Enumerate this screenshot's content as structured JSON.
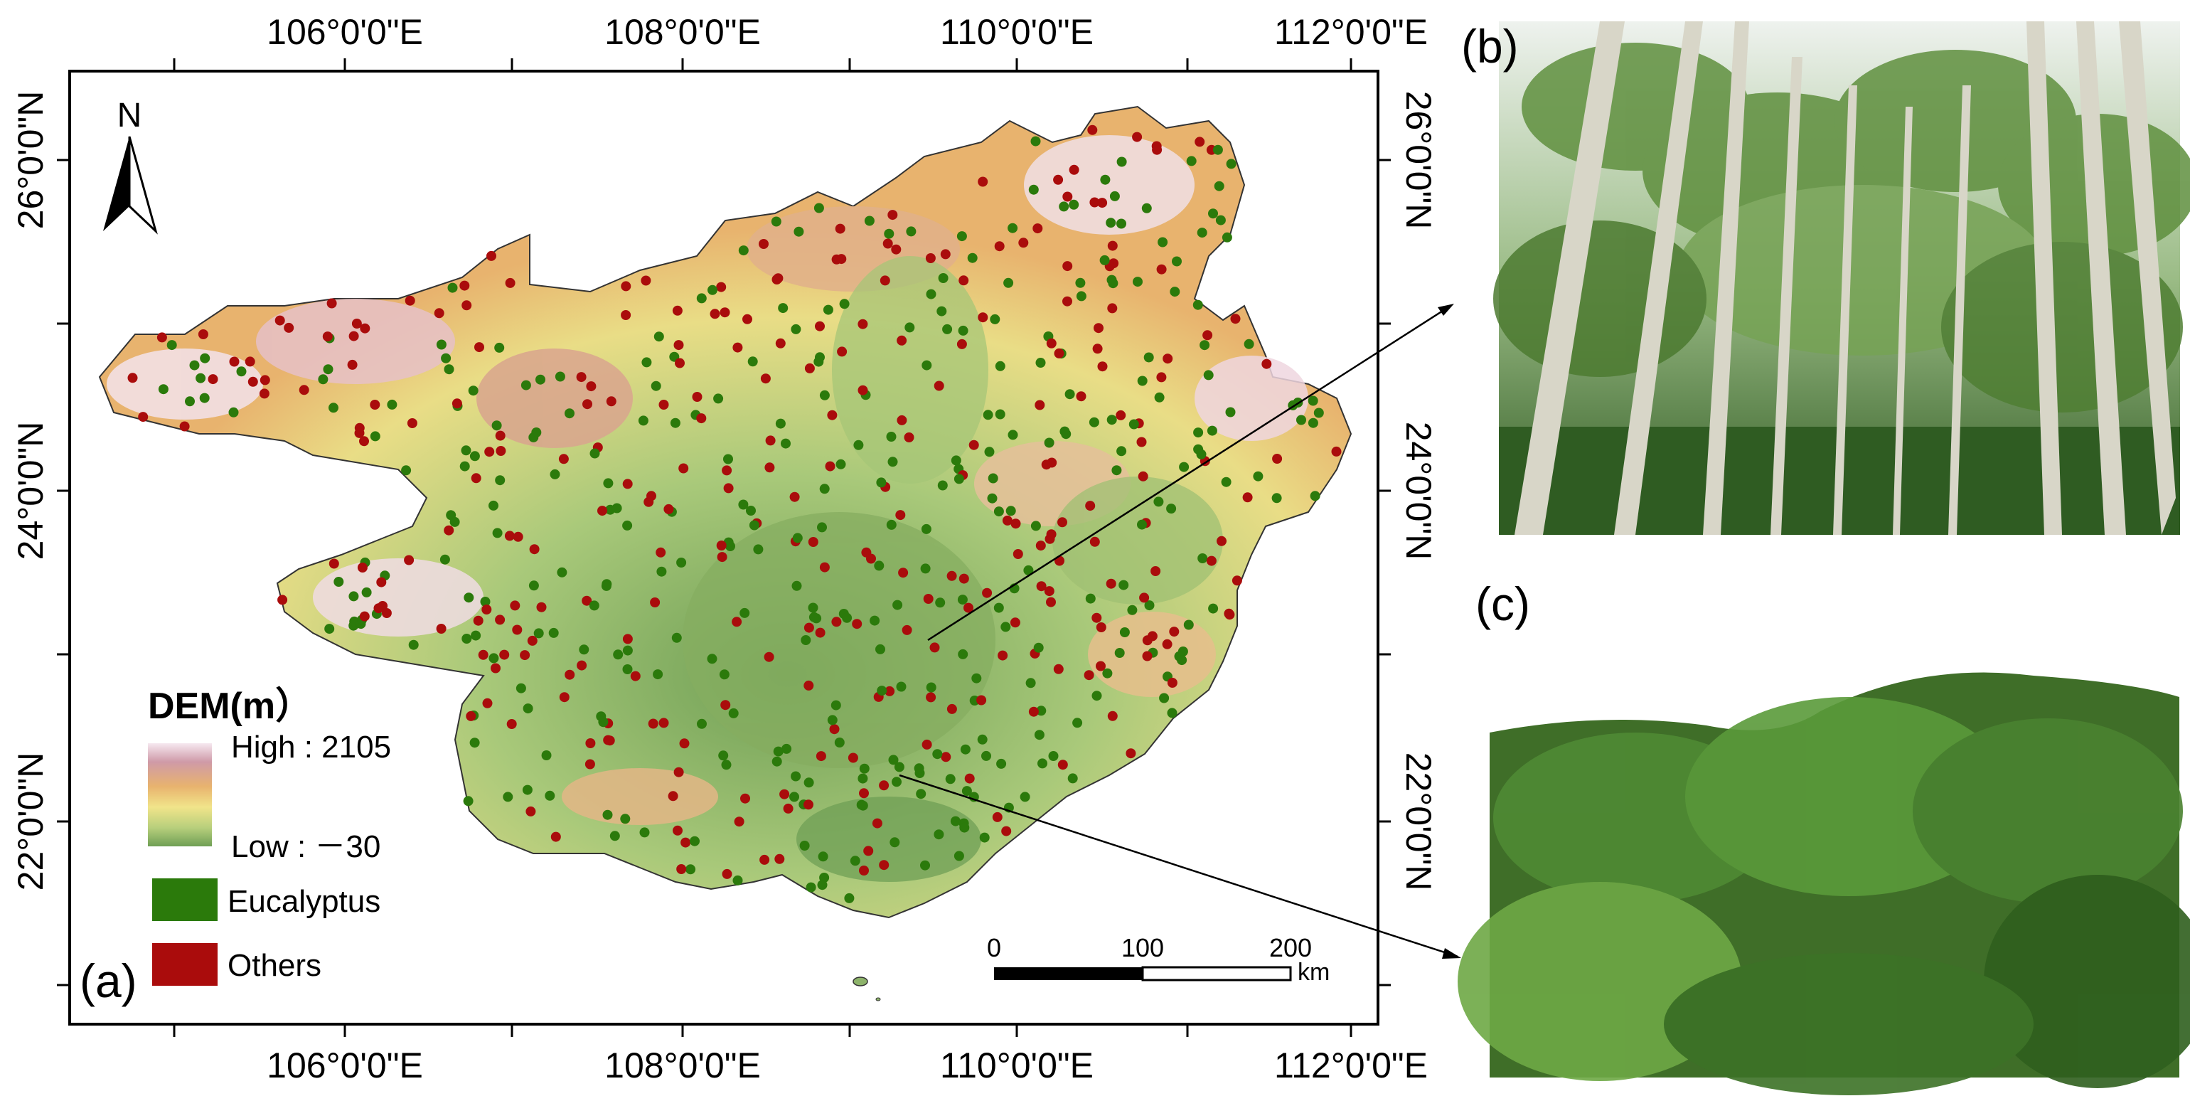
{
  "figure": {
    "panel_labels": {
      "a": "(a)",
      "b": "(b)",
      "c": "(c)"
    }
  },
  "map": {
    "top_ticks": [
      "106°0'0\"E",
      "108°0'0\"E",
      "110°0'0\"E",
      "112°0'0\"E"
    ],
    "bottom_ticks": [
      "106°0'0\"E",
      "108°0'0\"E",
      "110°0'0\"E",
      "112°0'0\"E"
    ],
    "left_ticks": [
      "26°0'0\"N",
      "24°0'0\"N",
      "22°0'0\"N"
    ],
    "right_ticks": [
      "26°0'0\"N",
      "24°0'0\"N",
      "22°0'0\"N"
    ],
    "north_arrow": {
      "label": "N",
      "icon": "north-arrow-icon"
    },
    "legend": {
      "title": "DEM(m）",
      "high_label": "High : 2105",
      "low_label": "Low : －30",
      "dem_high": 2105,
      "dem_low": -30,
      "items": [
        {
          "label": "Eucalyptus",
          "color": "#2b7a0b"
        },
        {
          "label": "Others",
          "color": "#aa0c0c"
        }
      ]
    },
    "scale_bar": {
      "ticks": [
        "0",
        "100",
        "200"
      ],
      "unit": "km"
    },
    "colors": {
      "dem_ramp": [
        "#f6e8f0",
        "#cf9aa8",
        "#e8b36e",
        "#f1e48a",
        "#b7cf7c",
        "#6f9f55"
      ],
      "eucalyptus_point": "#2b7a0b",
      "others_point": "#aa0c0c"
    }
  },
  "photos": {
    "b": {
      "subject": "eucalyptus trunks forest photo"
    },
    "c": {
      "subject": "eucalyptus plantation hillside photo"
    }
  }
}
